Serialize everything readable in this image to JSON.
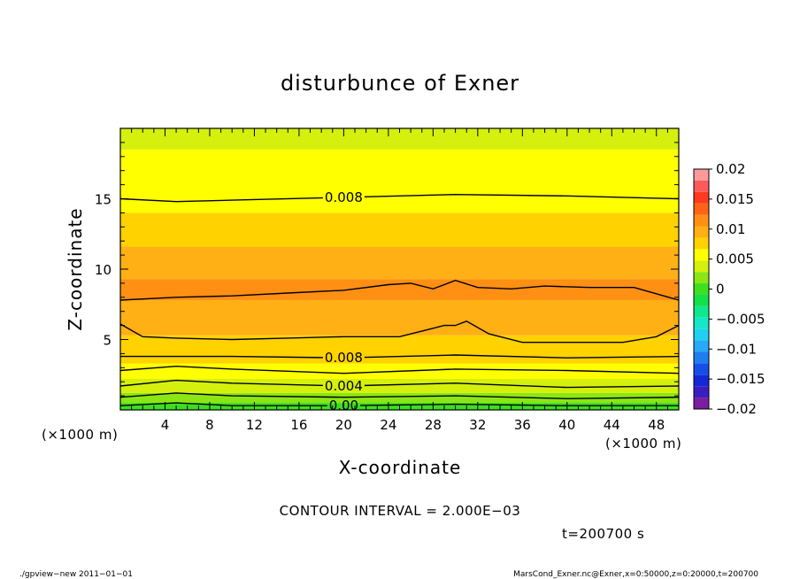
{
  "chart_data": {
    "type": "contour",
    "title": "disturbunce of Exner",
    "xlabel": "X-coordinate",
    "ylabel": "Z-coordinate",
    "x_unit_left": "(×1000 m)",
    "x_unit_right": "(×1000 m)",
    "xlim": [
      0,
      50
    ],
    "ylim": [
      0,
      20
    ],
    "x_ticks": [
      4,
      8,
      12,
      16,
      20,
      24,
      28,
      32,
      36,
      40,
      44,
      48
    ],
    "y_ticks": [
      5,
      10,
      15
    ],
    "colorbar": {
      "ticks": [
        "0.02",
        "0.015",
        "0.01",
        "0.005",
        "0",
        "−0.005",
        "−0.01",
        "−0.015",
        "−0.02"
      ],
      "levels": [
        {
          "from": -0.02,
          "to": -0.018,
          "color": "#7a1fa2"
        },
        {
          "from": -0.018,
          "to": -0.016,
          "color": "#3a1fbf"
        },
        {
          "from": -0.016,
          "to": -0.014,
          "color": "#1428d8"
        },
        {
          "from": -0.014,
          "to": -0.012,
          "color": "#1450e8"
        },
        {
          "from": -0.012,
          "to": -0.01,
          "color": "#1e7ef0"
        },
        {
          "from": -0.01,
          "to": -0.008,
          "color": "#28a8f5"
        },
        {
          "from": -0.008,
          "to": -0.006,
          "color": "#20d0f0"
        },
        {
          "from": -0.006,
          "to": -0.004,
          "color": "#14e8c8"
        },
        {
          "from": -0.004,
          "to": -0.002,
          "color": "#10e890"
        },
        {
          "from": -0.002,
          "to": 0.0,
          "color": "#14e048"
        },
        {
          "from": 0.0,
          "to": 0.002,
          "color": "#3ce020"
        },
        {
          "from": 0.002,
          "to": 0.004,
          "color": "#8ce614"
        },
        {
          "from": 0.004,
          "to": 0.006,
          "color": "#d4f00c"
        },
        {
          "from": 0.006,
          "to": 0.008,
          "color": "#ffff00"
        },
        {
          "from": 0.008,
          "to": 0.01,
          "color": "#ffd200"
        },
        {
          "from": 0.01,
          "to": 0.012,
          "color": "#ffb014"
        },
        {
          "from": 0.012,
          "to": 0.014,
          "color": "#ff9014"
        },
        {
          "from": 0.014,
          "to": 0.016,
          "color": "#ff6414"
        },
        {
          "from": 0.016,
          "to": 0.018,
          "color": "#ff3a1e"
        },
        {
          "from": 0.018,
          "to": 0.02,
          "color": "#ff5a5a"
        },
        {
          "from": 0.02,
          "to": 0.022,
          "color": "#ff9a9a"
        }
      ]
    },
    "bands": [
      {
        "z": [
          0.0,
          0.5
        ],
        "color": "#3ce020"
      },
      {
        "z": [
          0.5,
          1.2
        ],
        "color": "#8ce614"
      },
      {
        "z": [
          1.2,
          2.2
        ],
        "color": "#d4f00c"
      },
      {
        "z": [
          2.2,
          3.3
        ],
        "color": "#ffff00"
      },
      {
        "z": [
          3.3,
          5.3
        ],
        "color": "#ffd200"
      },
      {
        "z": [
          5.3,
          7.8
        ],
        "color": "#ffb014"
      },
      {
        "z": [
          7.8,
          9.3
        ],
        "color": "#ff9014"
      },
      {
        "z": [
          9.3,
          11.6
        ],
        "color": "#ffb014"
      },
      {
        "z": [
          11.6,
          14.0
        ],
        "color": "#ffd200"
      },
      {
        "z": [
          14.0,
          18.5
        ],
        "color": "#ffff00"
      },
      {
        "z": [
          18.5,
          20.0
        ],
        "color": "#d4f00c"
      }
    ],
    "contour_lines": [
      {
        "level": 0.008,
        "x": [
          0,
          5,
          10,
          20,
          30,
          40,
          50
        ],
        "z": [
          15.0,
          14.8,
          14.9,
          15.1,
          15.3,
          15.2,
          15.0
        ],
        "label": "0.008",
        "label_x": 20
      },
      {
        "level": 0.01,
        "x": [
          0,
          5,
          10,
          15,
          20,
          24,
          26,
          28,
          30,
          32,
          35,
          38,
          42,
          46,
          50
        ],
        "z": [
          7.8,
          8.0,
          8.1,
          8.3,
          8.5,
          8.9,
          9.0,
          8.6,
          9.2,
          8.7,
          8.6,
          8.8,
          8.7,
          8.7,
          7.8
        ]
      },
      {
        "level": 0.012,
        "x": [
          0,
          2,
          5,
          10,
          15,
          20,
          25,
          28,
          29,
          30,
          31,
          33,
          36,
          40,
          45,
          48,
          50
        ],
        "z": [
          6.1,
          5.2,
          5.1,
          5.0,
          5.1,
          5.2,
          5.2,
          5.8,
          6.0,
          6.0,
          6.3,
          5.4,
          4.8,
          4.8,
          4.8,
          5.2,
          6.0
        ]
      },
      {
        "level": 0.008,
        "x": [
          0,
          10,
          20,
          30,
          40,
          50
        ],
        "z": [
          3.8,
          3.8,
          3.7,
          3.9,
          3.7,
          3.8
        ],
        "label": "0.008",
        "label_x": 20
      },
      {
        "level": 0.006,
        "x": [
          0,
          5,
          10,
          20,
          30,
          40,
          50
        ],
        "z": [
          2.8,
          3.1,
          2.9,
          2.6,
          2.9,
          2.8,
          2.6
        ]
      },
      {
        "level": 0.004,
        "x": [
          0,
          5,
          10,
          20,
          30,
          40,
          50
        ],
        "z": [
          1.7,
          2.1,
          1.9,
          1.7,
          1.9,
          1.6,
          1.7
        ],
        "label": "0.004",
        "label_x": 20
      },
      {
        "level": 0.002,
        "x": [
          0,
          5,
          10,
          20,
          30,
          40,
          50
        ],
        "z": [
          0.9,
          1.2,
          1.0,
          0.9,
          1.0,
          0.8,
          0.9
        ]
      },
      {
        "level": 0.0,
        "x": [
          0,
          5,
          10,
          20,
          30,
          40,
          50
        ],
        "z": [
          0.3,
          0.5,
          0.3,
          0.3,
          0.4,
          0.3,
          0.3
        ],
        "label": "0.00",
        "label_x": 20
      }
    ],
    "annotations": {
      "contour_interval": "CONTOUR INTERVAL = 2.000E−03",
      "time": "t=200700 s",
      "footer_left": "./gpview−new   2011−01−01",
      "footer_right": "MarsCond_Exner.nc@Exner,x=0:50000,z=0:20000,t=200700"
    }
  }
}
